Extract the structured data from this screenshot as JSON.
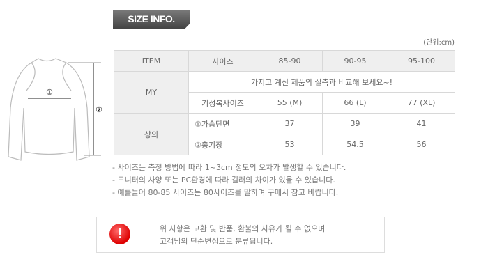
{
  "header": {
    "badge": "SIZE INFO.",
    "unit": "(단위:cm)"
  },
  "diagram": {
    "marker1": "①",
    "marker2": "②"
  },
  "table": {
    "headers": [
      "ITEM",
      "사이즈",
      "85-90",
      "90-95",
      "95-100"
    ],
    "my_label": "MY",
    "my_note": "가지고 계신 제품의 실측과 비교해 보세요~!",
    "ready_row": {
      "label": "기성복사이즈",
      "values": [
        "55 (M)",
        "66 (L)",
        "77 (XL)"
      ]
    },
    "top_label": "상의",
    "rows": [
      {
        "label": "①가슴단면",
        "values": [
          "37",
          "39",
          "41"
        ]
      },
      {
        "label": "②총기장",
        "values": [
          "53",
          "54.5",
          "56"
        ]
      }
    ]
  },
  "notes": [
    "- 사이즈는 측정 방법에 따라 1~3cm 정도의 오차가 발생할 수 있습니다.",
    "- 모니터의 사양 또는 PC환경에 따라 컬러의 차이가 있을 수 있습니다."
  ],
  "note3": {
    "prefix": "- 예를들어 ",
    "underlined": "80-85 사이즈는 80사이즈",
    "suffix": "를 말하며 구매시 참고 바랍니다."
  },
  "alert": {
    "icon": "exclamation-icon",
    "symbol": "!",
    "line1": "위 사항은 교환 및 반품, 환불의 사유가 될 수 없으며",
    "line2": "고객님의 단순변심으로 분류됩니다."
  }
}
